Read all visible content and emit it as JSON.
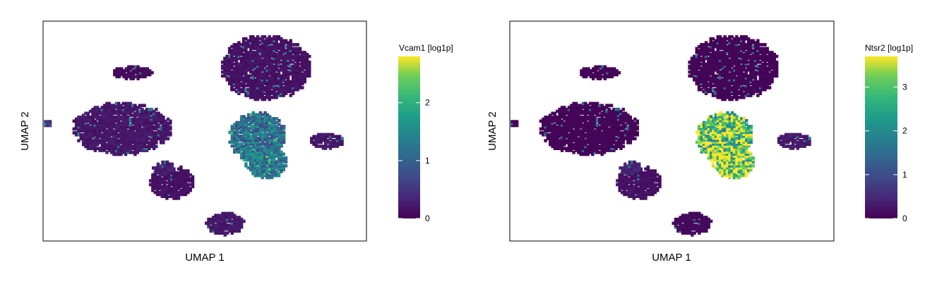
{
  "chart_data": [
    {
      "type": "scatter",
      "subtype": "hexbin-umap",
      "title": "",
      "xlabel": "UMAP 1",
      "ylabel": "UMAP 2",
      "xlim": [
        -10,
        12
      ],
      "ylim": [
        -8,
        10
      ],
      "grid": false,
      "colormap": "viridis",
      "colorbar": {
        "title": "Vcam1 [log1p]",
        "min": 0,
        "max": 2.8,
        "ticks": [
          0,
          1,
          2
        ],
        "tick_labels": [
          "0",
          "1",
          "2"
        ]
      },
      "clusters": [
        {
          "label": "",
          "cx": 5.2,
          "cy": 6.2,
          "rx": 3.0,
          "ry": 2.6,
          "value": 0.15
        },
        {
          "label": "",
          "cx": -4.6,
          "cy": 1.2,
          "rx": 3.3,
          "ry": 2.1,
          "value": 0.2
        },
        {
          "label": "",
          "cx": 4.6,
          "cy": 0.5,
          "rx": 1.9,
          "ry": 2.0,
          "value": 1.15
        },
        {
          "label": "",
          "cx": 5.2,
          "cy": -1.6,
          "rx": 1.4,
          "ry": 1.2,
          "value": 1.25
        },
        {
          "label": "",
          "cx": -1.2,
          "cy": -3.2,
          "rx": 1.5,
          "ry": 1.3,
          "value": 0.15
        },
        {
          "label": "",
          "cx": -1.8,
          "cy": -2.0,
          "rx": 0.7,
          "ry": 0.5,
          "value": 0.25
        },
        {
          "label": "",
          "cx": 2.4,
          "cy": -6.6,
          "rx": 1.3,
          "ry": 0.9,
          "value": 0.2
        },
        {
          "label": "",
          "cx": -3.9,
          "cy": 5.8,
          "rx": 1.4,
          "ry": 0.5,
          "value": 0.1
        },
        {
          "label": "",
          "cx": 9.3,
          "cy": 0.2,
          "rx": 1.2,
          "ry": 0.6,
          "value": 0.2
        },
        {
          "label": "",
          "cx": -9.7,
          "cy": 1.6,
          "rx": 0.3,
          "ry": 0.3,
          "value": 0.5
        }
      ]
    },
    {
      "type": "scatter",
      "subtype": "hexbin-umap",
      "title": "",
      "xlabel": "UMAP 1",
      "ylabel": "UMAP 2",
      "xlim": [
        -10,
        12
      ],
      "ylim": [
        -8,
        10
      ],
      "grid": false,
      "colormap": "viridis",
      "colorbar": {
        "title": "Ntsr2 [log1p]",
        "min": 0,
        "max": 3.7,
        "ticks": [
          0,
          1,
          2,
          3
        ],
        "tick_labels": [
          "0",
          "1",
          "2",
          "3"
        ]
      },
      "clusters": [
        {
          "label": "",
          "cx": 5.2,
          "cy": 6.2,
          "rx": 3.0,
          "ry": 2.6,
          "value": 0.05
        },
        {
          "label": "",
          "cx": -4.6,
          "cy": 1.2,
          "rx": 3.3,
          "ry": 2.1,
          "value": 0.05
        },
        {
          "label": "",
          "cx": 4.6,
          "cy": 0.5,
          "rx": 1.9,
          "ry": 2.0,
          "value": 3.0
        },
        {
          "label": "",
          "cx": 5.2,
          "cy": -1.6,
          "rx": 1.4,
          "ry": 1.2,
          "value": 3.2
        },
        {
          "label": "",
          "cx": -1.2,
          "cy": -3.2,
          "rx": 1.5,
          "ry": 1.3,
          "value": 0.2
        },
        {
          "label": "",
          "cx": -1.8,
          "cy": -2.0,
          "rx": 0.7,
          "ry": 0.5,
          "value": 0.4
        },
        {
          "label": "",
          "cx": 2.4,
          "cy": -6.6,
          "rx": 1.3,
          "ry": 0.9,
          "value": 0.1
        },
        {
          "label": "",
          "cx": -3.9,
          "cy": 5.8,
          "rx": 1.4,
          "ry": 0.5,
          "value": 0.05
        },
        {
          "label": "",
          "cx": 9.3,
          "cy": 0.2,
          "rx": 1.2,
          "ry": 0.6,
          "value": 0.3
        },
        {
          "label": "",
          "cx": -9.7,
          "cy": 1.6,
          "rx": 0.3,
          "ry": 0.3,
          "value": 0.05
        }
      ]
    }
  ]
}
